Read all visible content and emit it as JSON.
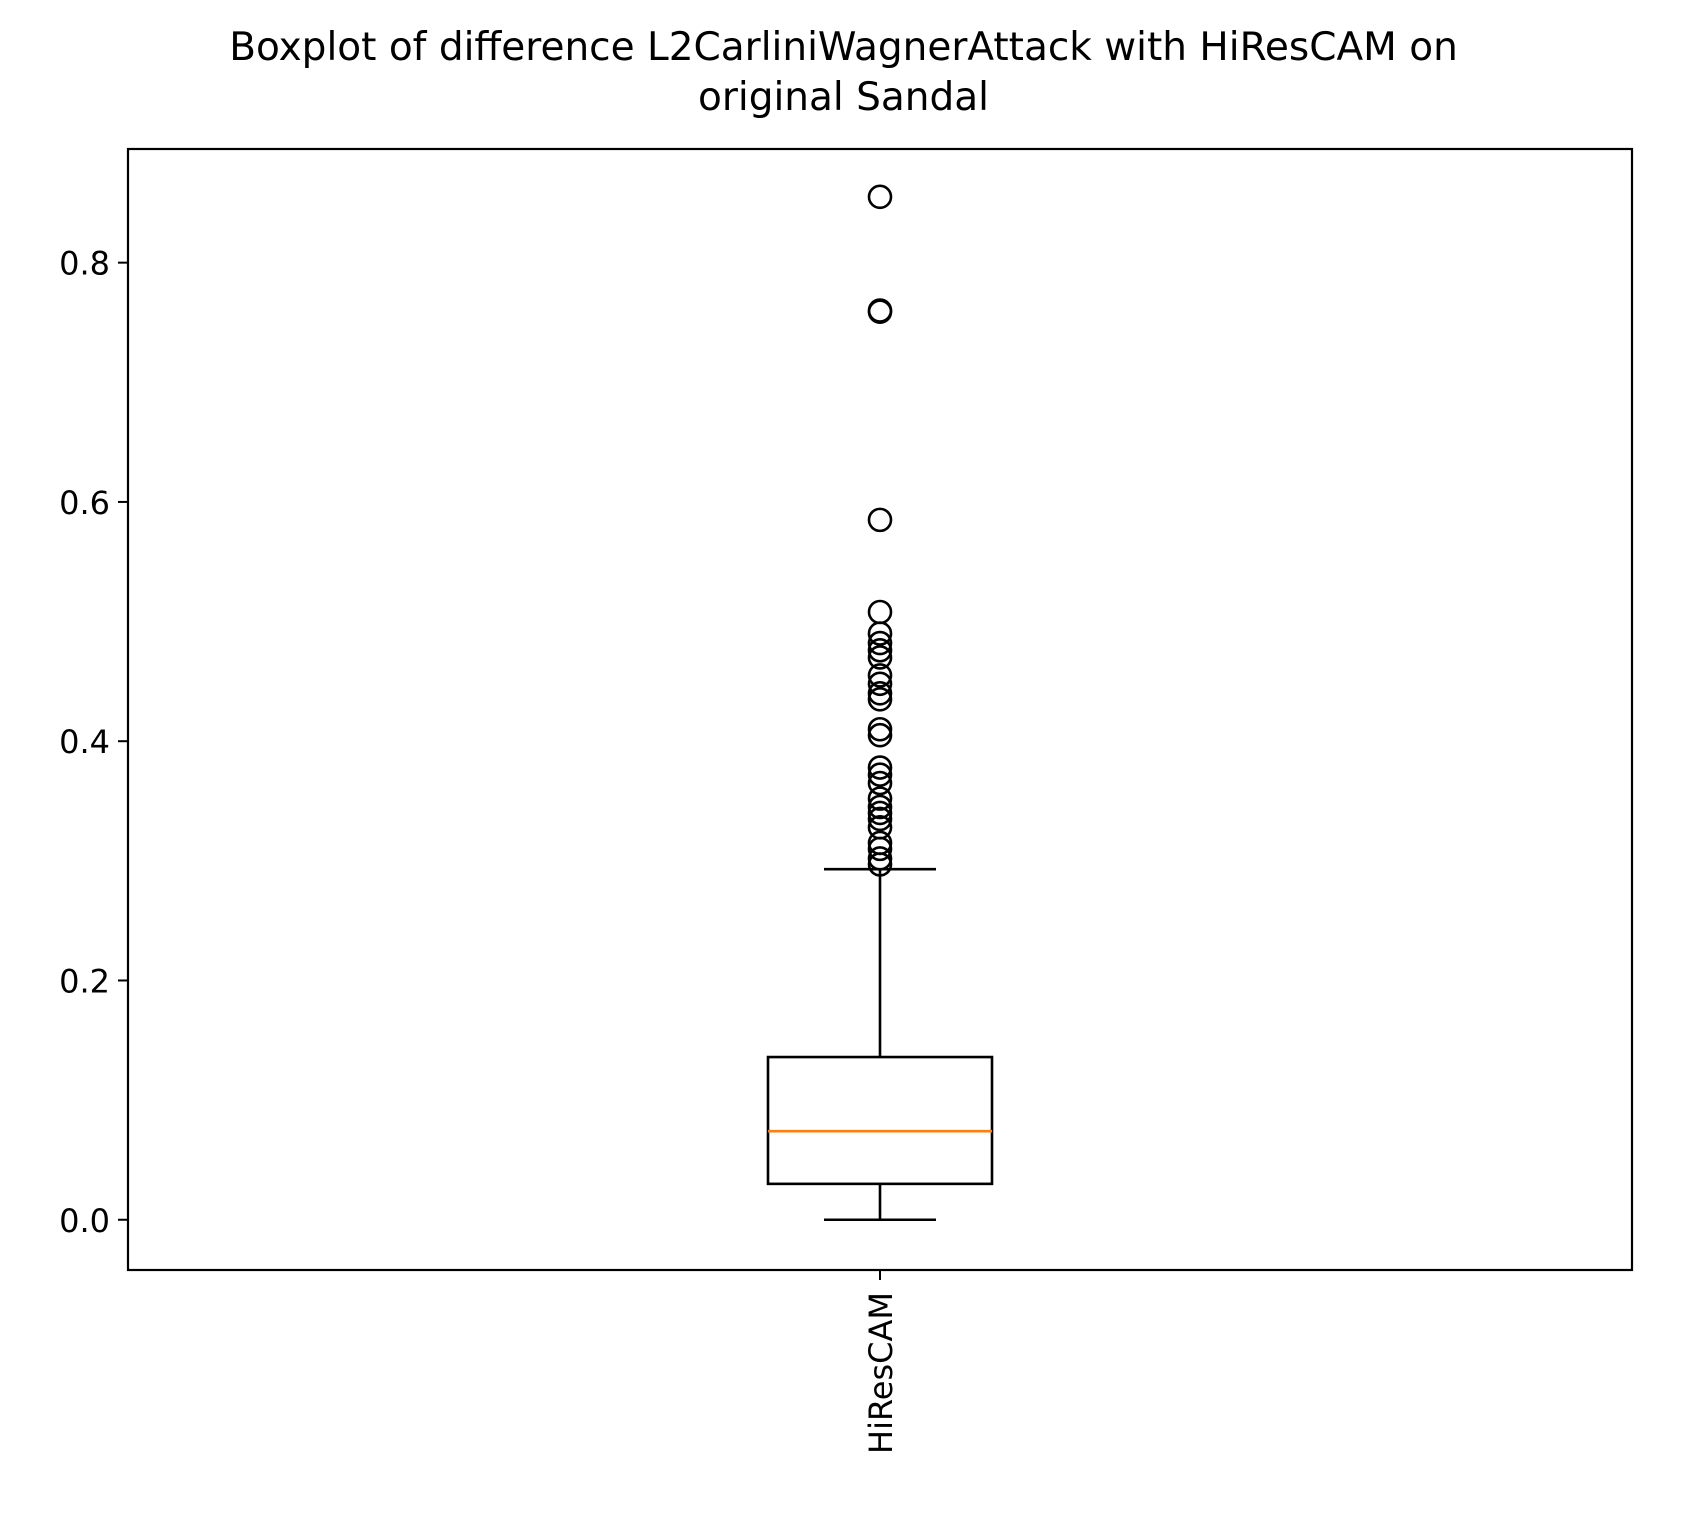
{
  "chart_data": {
    "type": "boxplot",
    "title": "Boxplot of difference L2CarliniWagnerAttack with HiResCAM on original Sandal",
    "title_lines": [
      "Boxplot of difference L2CarliniWagnerAttack with HiResCAM on",
      "original Sandal"
    ],
    "xlabel": "",
    "ylabel": "",
    "categories": [
      "HiResCAM"
    ],
    "ylim": [
      -0.042,
      0.895
    ],
    "yticks": [
      0.0,
      0.2,
      0.4,
      0.6,
      0.8
    ],
    "ytick_labels": [
      "0.0",
      "0.2",
      "0.4",
      "0.6",
      "0.8"
    ],
    "grid": false,
    "colors": {
      "box": "#000000",
      "median": "#ff7f0e",
      "flier": "#000000"
    },
    "boxes": [
      {
        "name": "HiResCAM",
        "whisker_low": 0.0,
        "q1": 0.03,
        "median": 0.074,
        "q3": 0.136,
        "whisker_high": 0.293,
        "outliers": [
          0.855,
          0.76,
          0.759,
          0.585,
          0.508,
          0.49,
          0.482,
          0.476,
          0.47,
          0.455,
          0.448,
          0.44,
          0.435,
          0.41,
          0.405,
          0.378,
          0.372,
          0.365,
          0.352,
          0.345,
          0.34,
          0.335,
          0.328,
          0.315,
          0.31,
          0.302,
          0.297
        ]
      }
    ]
  }
}
